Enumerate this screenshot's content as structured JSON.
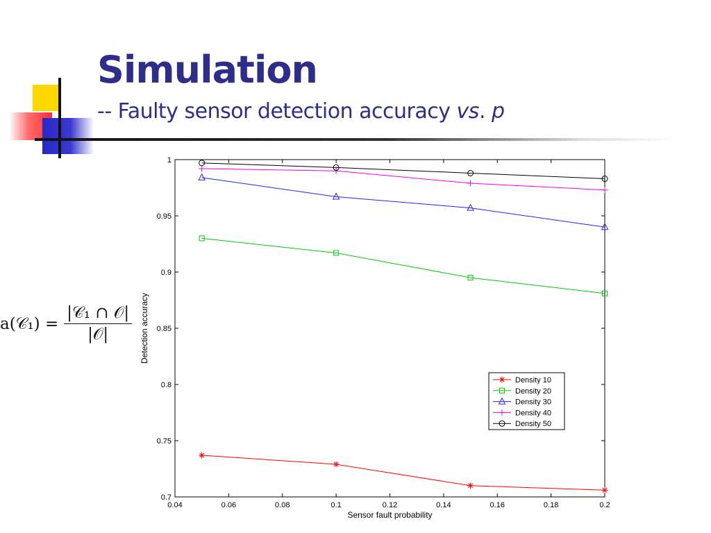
{
  "slide": {
    "title": "Simulation",
    "subtitle_prefix": "-- Faulty sensor detection accuracy ",
    "subtitle_vs": "vs",
    "subtitle_dot": ". ",
    "subtitle_p": "p"
  },
  "formula": {
    "lhs": "a(𝒞₁) =",
    "numerator": "|𝒞₁ ∩ 𝒪|",
    "denominator": "|𝒪|"
  },
  "colors": {
    "title": "#2e2e8a",
    "density10": "#ff0000",
    "density20": "#00cc00",
    "density30": "#2222ee",
    "density40": "#ee00ee",
    "density50": "#000000"
  },
  "chart_data": {
    "type": "line",
    "title": "",
    "xlabel": "Sensor fault probability",
    "ylabel": "Detection accuracy",
    "xlim": [
      0.04,
      0.2
    ],
    "ylim": [
      0.7,
      1
    ],
    "xticks": [
      "0.04",
      "0.06",
      "0.08",
      "0.1",
      "0.12",
      "0.14",
      "0.16",
      "0.18",
      "0.2"
    ],
    "yticks": [
      "0.7",
      "0.75",
      "0.8",
      "0.85",
      "0.9",
      "0.95",
      "1"
    ],
    "grid": false,
    "legend_position": "lower-right",
    "x": [
      0.05,
      0.1,
      0.15,
      0.2
    ],
    "series": [
      {
        "name": "Density 10",
        "marker": "star",
        "color": "#ff0000",
        "values": [
          0.737,
          0.729,
          0.71,
          0.706
        ]
      },
      {
        "name": "Density 20",
        "marker": "square",
        "color": "#00cc00",
        "values": [
          0.93,
          0.917,
          0.895,
          0.881
        ]
      },
      {
        "name": "Density 30",
        "marker": "triangle",
        "color": "#2222ee",
        "values": [
          0.984,
          0.967,
          0.957,
          0.94
        ]
      },
      {
        "name": "Density 40",
        "marker": "plus",
        "color": "#ee00ee",
        "values": [
          0.992,
          0.99,
          0.979,
          0.973
        ]
      },
      {
        "name": "Density 50",
        "marker": "circle",
        "color": "#000000",
        "values": [
          0.997,
          0.993,
          0.988,
          0.983
        ]
      }
    ]
  }
}
